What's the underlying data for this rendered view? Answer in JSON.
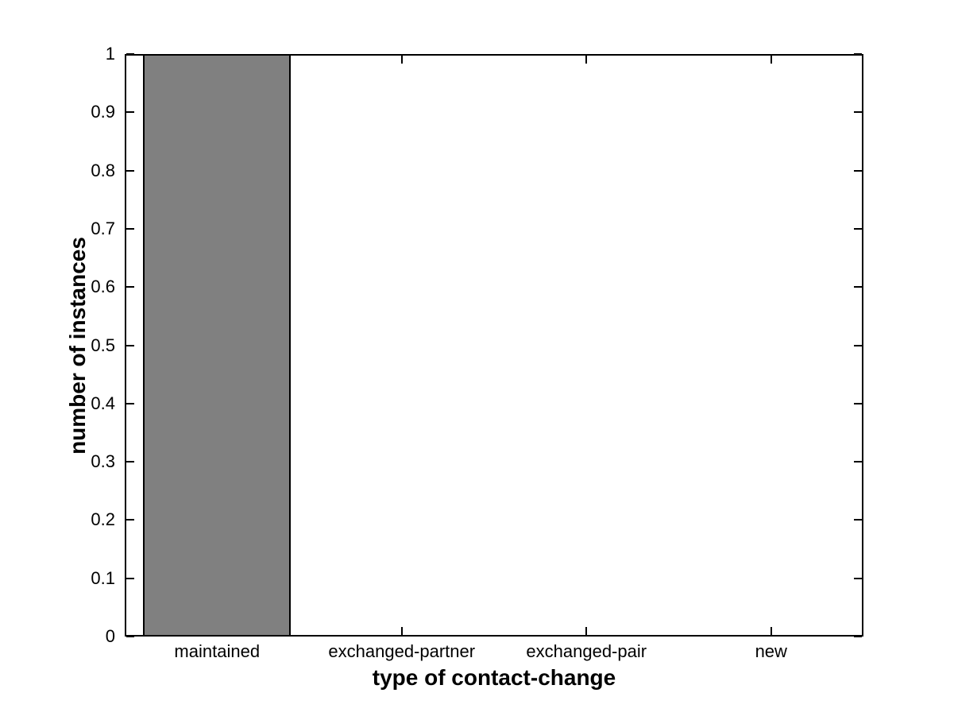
{
  "figure": {
    "background": "#ffffff",
    "axis_color": "#000000"
  },
  "chart_data": {
    "type": "bar",
    "categories": [
      "maintained",
      "exchanged-partner",
      "exchanged-pair",
      "new"
    ],
    "values": [
      1,
      0,
      0,
      0
    ],
    "title": "",
    "xlabel": "type of contact-change",
    "ylabel": "number of instances",
    "ylim": [
      0,
      1
    ],
    "yticks": [
      0,
      0.1,
      0.2,
      0.3,
      0.4,
      0.5,
      0.6,
      0.7,
      0.8,
      0.9,
      1
    ],
    "ytick_labels": [
      "0",
      "0.1",
      "0.2",
      "0.3",
      "0.4",
      "0.5",
      "0.6",
      "0.7",
      "0.8",
      "0.9",
      "1"
    ],
    "bar_color": "#808080",
    "bar_edge_color": "#000000",
    "bar_width_fraction": 0.8,
    "grid": false,
    "legend": null,
    "tick_direction": "in",
    "box": true
  }
}
